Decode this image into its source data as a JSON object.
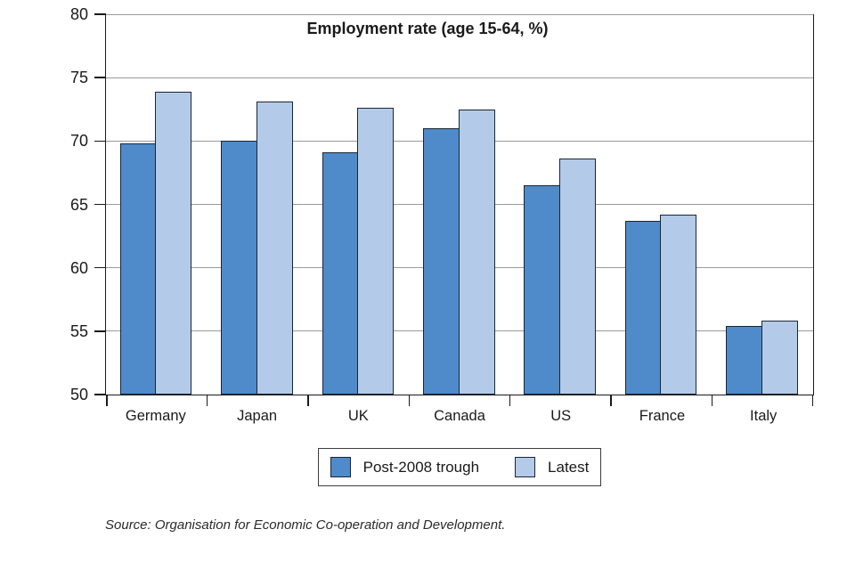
{
  "chart_data": {
    "type": "bar",
    "title": "Employment rate (age 15-64, %)",
    "categories": [
      "Germany",
      "Japan",
      "UK",
      "Canada",
      "US",
      "France",
      "Italy"
    ],
    "series": [
      {
        "name": "Post-2008 trough",
        "color": "#4f8bca",
        "values": [
          69.8,
          70.0,
          69.1,
          71.0,
          66.5,
          63.7,
          55.4
        ]
      },
      {
        "name": "Latest",
        "color": "#b3cbe9",
        "values": [
          73.9,
          73.1,
          72.6,
          72.5,
          68.6,
          64.2,
          55.8
        ]
      }
    ],
    "ylim": [
      50,
      80
    ],
    "yticks": [
      50,
      55,
      60,
      65,
      70,
      75,
      80
    ],
    "grid": "horizontal",
    "legend_position": "bottom",
    "colors": {
      "gridline": "#9a9a9a",
      "axis": "#1a1a1a",
      "bar_border": "#1b2533"
    }
  },
  "source_note": "Source: Organisation for Economic Co-operation and Development."
}
